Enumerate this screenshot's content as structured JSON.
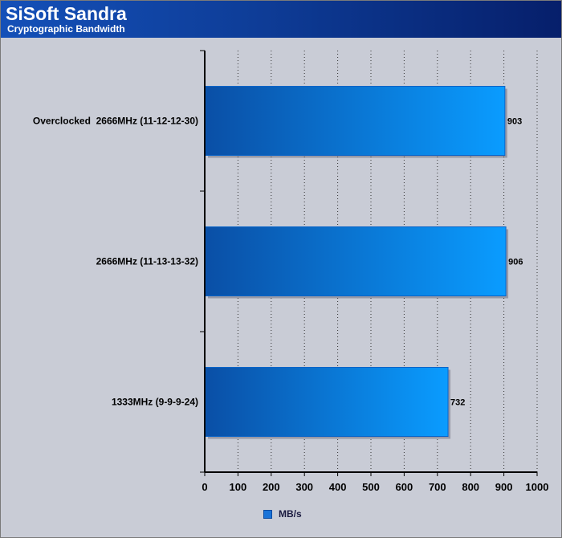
{
  "header": {
    "title": "SiSoft Sandra",
    "subtitle": "Cryptographic Bandwidth"
  },
  "legend": {
    "label": "MB/s"
  },
  "colors": {
    "bar_dark": "#0a4fa6",
    "bar_light": "#0a9cff",
    "background": "#c9ccd6",
    "header_dark": "#061f6b",
    "header_light": "#1450b8"
  },
  "chart_data": {
    "type": "bar",
    "orientation": "horizontal",
    "title": "SiSoft Sandra",
    "subtitle": "Cryptographic Bandwidth",
    "categories": [
      "Overclocked  2666MHz (11-12-12-30)",
      "2666MHz (11-13-13-32)",
      "1333MHz (9-9-9-24)"
    ],
    "series": [
      {
        "name": "MB/s",
        "values": [
          903,
          906,
          732
        ]
      }
    ],
    "xlim": [
      0,
      1000
    ],
    "xticks": [
      0,
      100,
      200,
      300,
      400,
      500,
      600,
      700,
      800,
      900,
      1000
    ],
    "grid": true,
    "legend": "bottom-center"
  }
}
